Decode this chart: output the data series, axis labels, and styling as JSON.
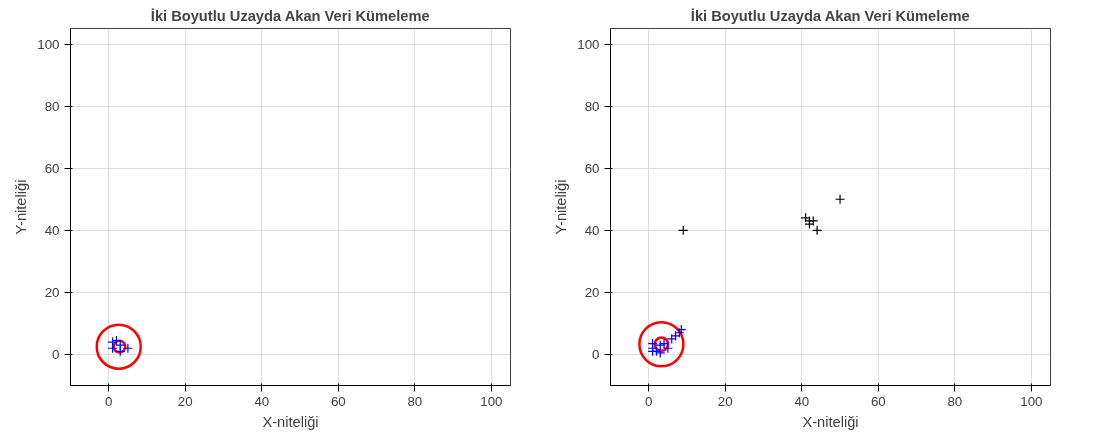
{
  "chart_data": [
    {
      "type": "scatter",
      "title": "İki Boyutlu Uzayda Akan Veri Kümeleme",
      "xlabel": "X-niteliği",
      "ylabel": "Y-niteliği",
      "xlim": [
        -10,
        105
      ],
      "ylim": [
        -10,
        105
      ],
      "xticks": [
        0,
        20,
        40,
        60,
        80,
        100
      ],
      "yticks": [
        0,
        20,
        40,
        60,
        80,
        100
      ],
      "grid": true,
      "series": [
        {
          "marker": "cross",
          "color": "#0000ff",
          "x": [
            1,
            2,
            5,
            1,
            3,
            3
          ],
          "values": [
            4,
            4.5,
            2,
            2,
            1,
            3
          ]
        },
        {
          "type": "bubble",
          "color": "#ff0000",
          "x": [
            2.6,
            2.8
          ],
          "values": [
            2.5,
            2.5
          ],
          "sizes": [
            1,
            0.071
          ]
        }
      ]
    },
    {
      "type": "scatter",
      "title": "İki Boyutlu Uzayda Akan Veri Kümeleme",
      "xlabel": "X-niteliği",
      "ylabel": "Y-niteliği",
      "xlim": [
        -10,
        105
      ],
      "ylim": [
        -10,
        105
      ],
      "xticks": [
        0,
        20,
        40,
        60,
        80,
        100
      ],
      "yticks": [
        0,
        20,
        40,
        60,
        80,
        100
      ],
      "grid": true,
      "series": [
        {
          "marker": "cross",
          "color": "#0000ff",
          "x": [
            1,
            1,
            1,
            2,
            3,
            4,
            5,
            6,
            7,
            8,
            8.5,
            3
          ],
          "values": [
            1,
            2,
            3.5,
            1,
            3,
            3.5,
            2,
            5,
            6,
            7,
            8,
            0.5
          ]
        },
        {
          "marker": "cross",
          "color": "#000000",
          "x": [
            9,
            41,
            42,
            42,
            43,
            44,
            50
          ],
          "values": [
            40,
            44,
            43,
            42,
            43,
            40,
            50
          ]
        },
        {
          "type": "bubble",
          "color": "#ff0000",
          "x": [
            3.3,
            3.3
          ],
          "values": [
            3.3,
            3.3
          ],
          "sizes": [
            1,
            0.092
          ]
        }
      ]
    }
  ]
}
